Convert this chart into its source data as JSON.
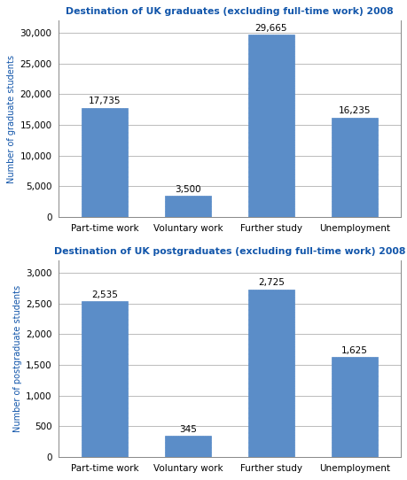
{
  "grad_title": "Destination of UK graduates (excluding full-time work) 2008",
  "postgrad_title": "Destination of UK postgraduates (excluding full-time work) 2008",
  "categories": [
    "Part-time work",
    "Voluntary work",
    "Further study",
    "Unemployment"
  ],
  "grad_values": [
    17735,
    3500,
    29665,
    16235
  ],
  "grad_labels": [
    "17,735",
    "3,500",
    "29,665",
    "16,235"
  ],
  "postgrad_values": [
    2535,
    345,
    2725,
    1625
  ],
  "postgrad_labels": [
    "2,535",
    "345",
    "2,725",
    "1,625"
  ],
  "bar_color": "#5b8dc8",
  "title_color": "#1155aa",
  "ylabel_grad": "Number of graduate students",
  "ylabel_postgrad": "Number of postgraduate students",
  "grad_ylim": [
    0,
    32000
  ],
  "postgrad_ylim": [
    0,
    3200
  ],
  "grad_yticks": [
    0,
    5000,
    10000,
    15000,
    20000,
    25000,
    30000
  ],
  "postgrad_yticks": [
    0,
    500,
    1000,
    1500,
    2000,
    2500,
    3000
  ],
  "background_color": "#ffffff",
  "grid_color": "#bbbbbb"
}
